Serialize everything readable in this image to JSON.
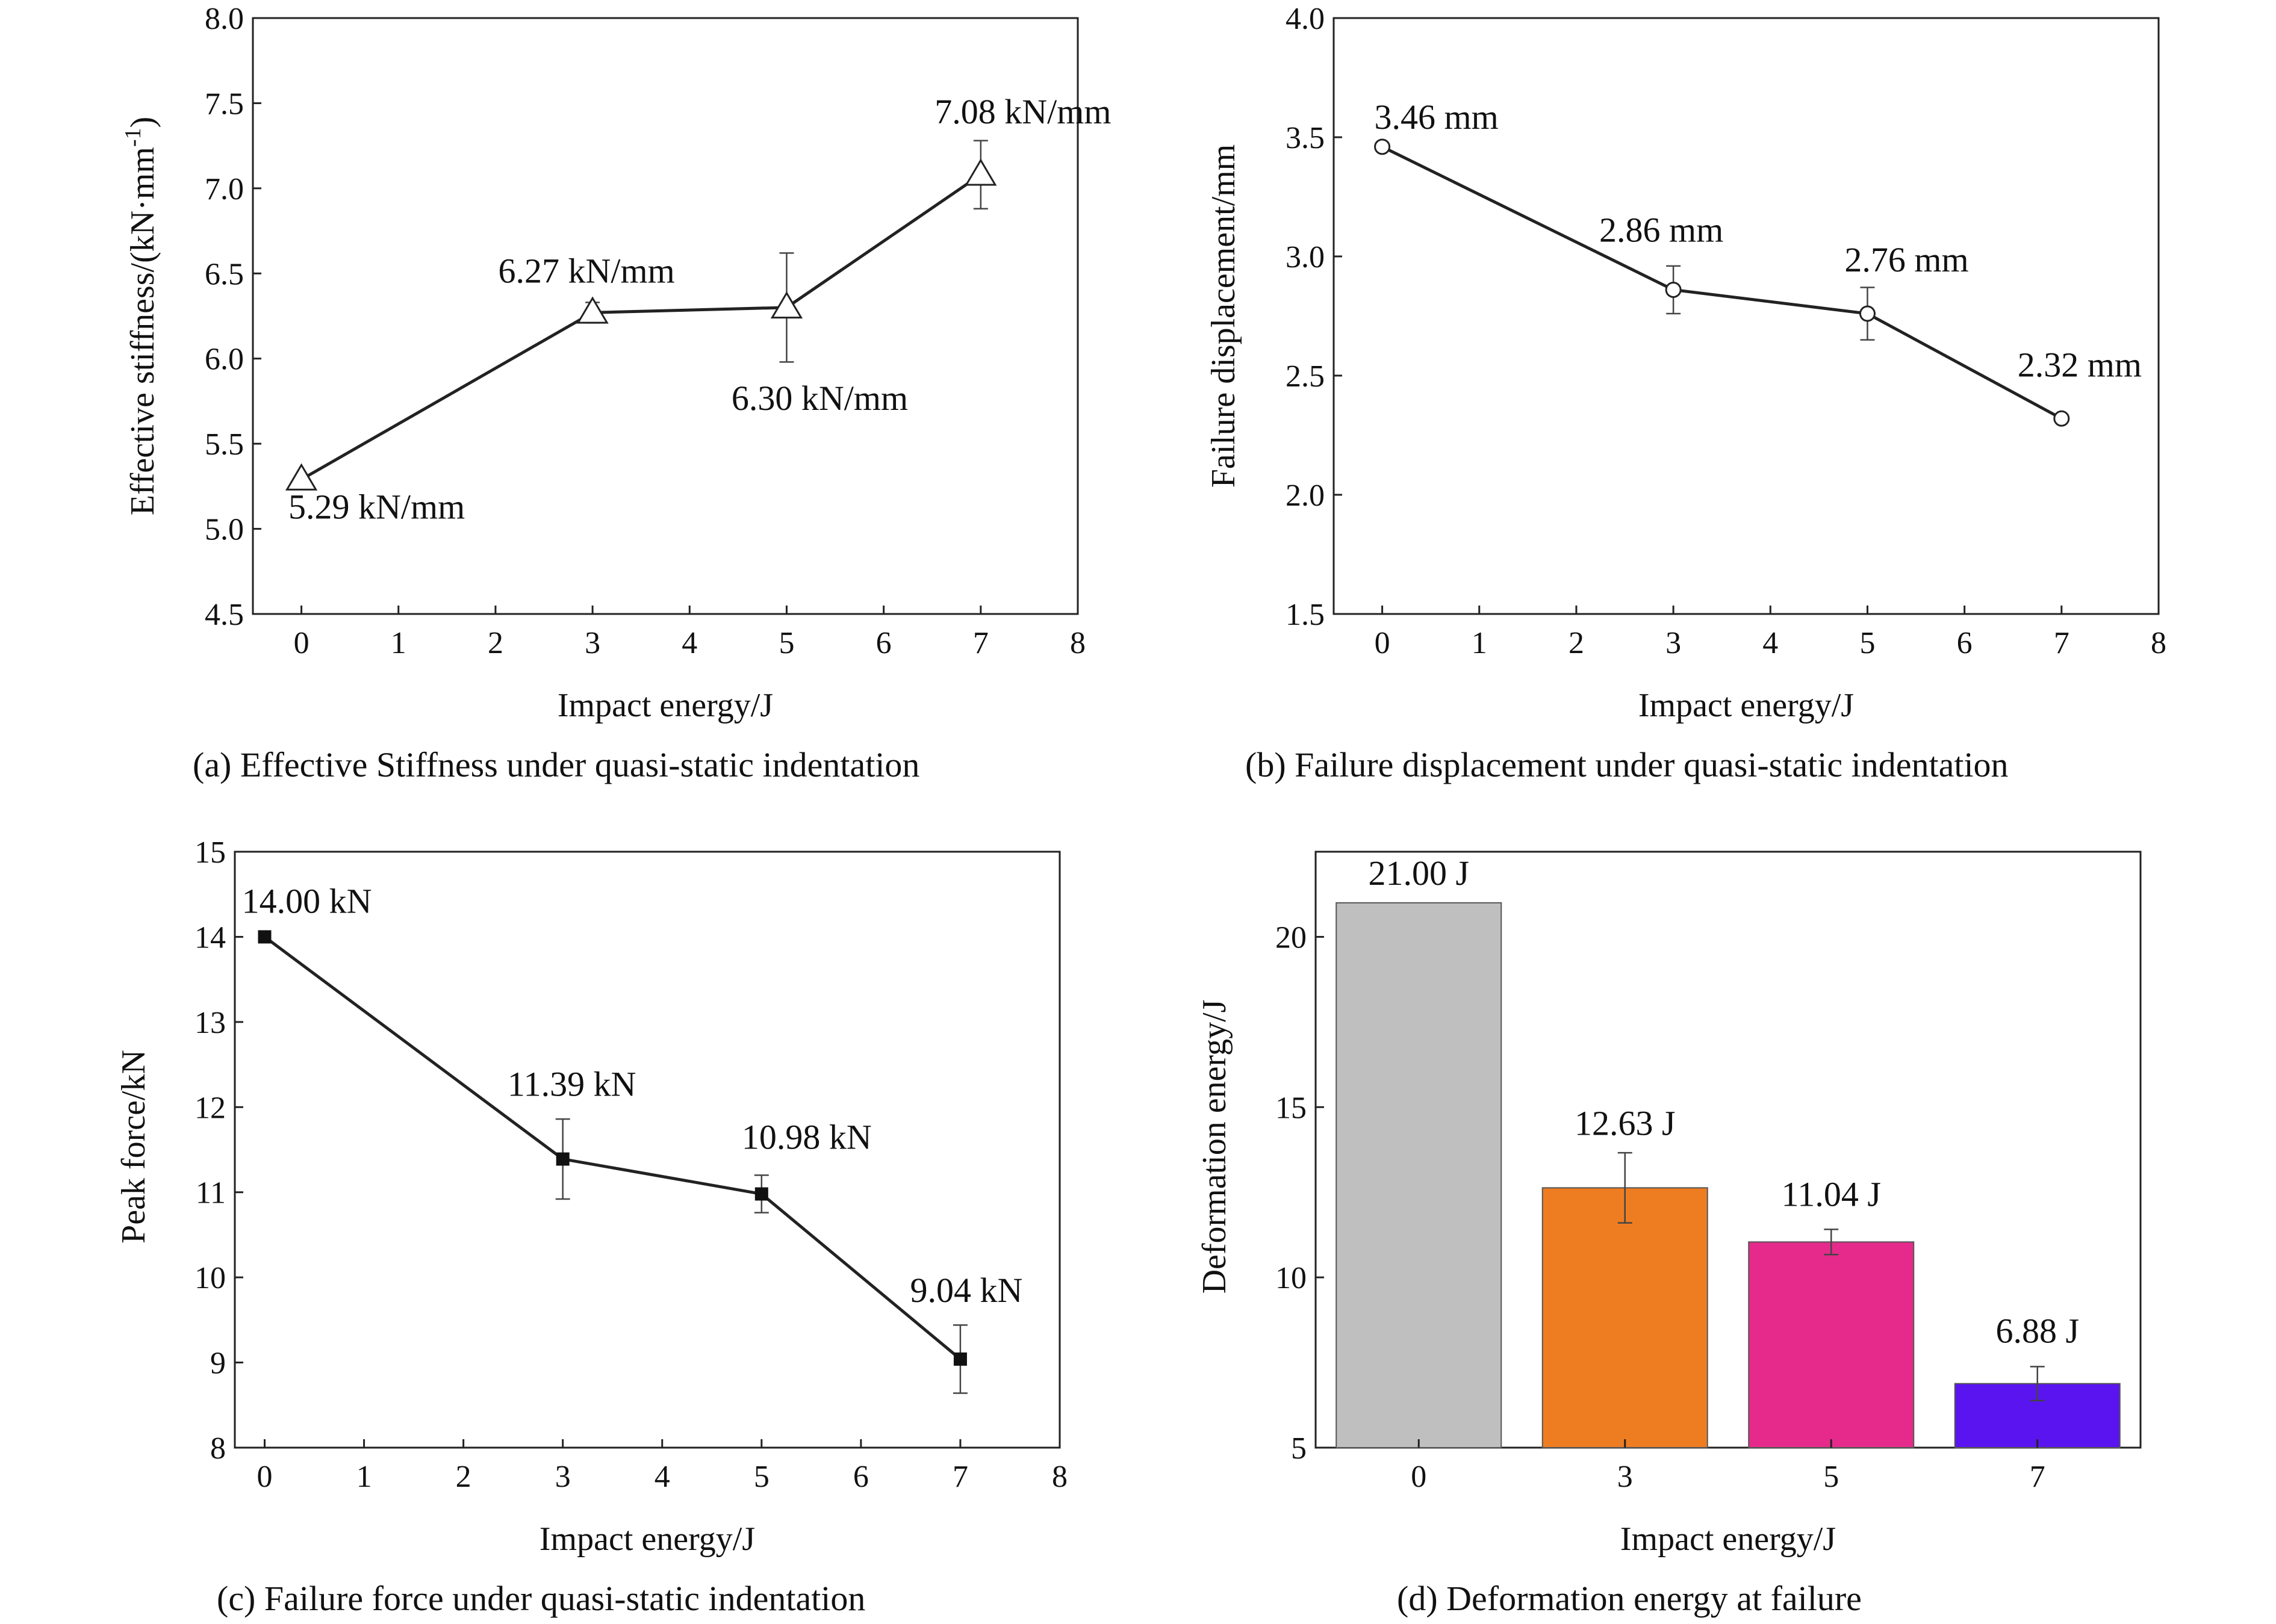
{
  "chart_data": [
    {
      "id": "a",
      "type": "line",
      "caption": "(a) Effective Stiffness under quasi-static indentation",
      "xlabel": "Impact energy/J",
      "ylabel": "Effective stiffness/(kN·mm",
      "ylabel_sup": "-1",
      "ylabel_tail": ")",
      "xlim": [
        -0.5,
        8
      ],
      "ylim": [
        4.5,
        8.0
      ],
      "xticks": [
        0,
        1,
        2,
        3,
        4,
        5,
        6,
        7,
        8
      ],
      "yticks": [
        "4.5",
        "5.0",
        "5.5",
        "6.0",
        "6.5",
        "7.0",
        "7.5",
        "8.0"
      ],
      "marker": "triangle",
      "series": [
        {
          "x": [
            0,
            3,
            5,
            7
          ],
          "y": [
            5.29,
            6.27,
            6.3,
            7.08
          ],
          "err": [
            0.0,
            0.06,
            0.32,
            0.2
          ],
          "labels": [
            "5.29 kN/mm",
            "6.27 kN/mm",
            "6.30 kN/mm",
            "7.08 kN/mm"
          ]
        }
      ]
    },
    {
      "id": "b",
      "type": "line",
      "caption": "(b) Failure displacement under quasi-static indentation",
      "xlabel": "Impact energy/J",
      "ylabel": "Failure displacement/mm",
      "xlim": [
        -0.5,
        8
      ],
      "ylim": [
        1.5,
        4.0
      ],
      "xticks": [
        0,
        1,
        2,
        3,
        4,
        5,
        6,
        7,
        8
      ],
      "yticks": [
        "1.5",
        "2.0",
        "2.5",
        "3.0",
        "3.5",
        "4.0"
      ],
      "marker": "circle",
      "series": [
        {
          "x": [
            0,
            3,
            5,
            7
          ],
          "y": [
            3.46,
            2.86,
            2.76,
            2.32
          ],
          "err": [
            0.0,
            0.1,
            0.11,
            0.0
          ],
          "labels": [
            "3.46 mm",
            "2.86 mm",
            "2.76 mm",
            "2.32 mm"
          ]
        }
      ]
    },
    {
      "id": "c",
      "type": "line",
      "caption": "(c) Failure force under quasi-static indentation",
      "xlabel": "Impact energy/J",
      "ylabel": "Peak force/kN",
      "xlim": [
        -0.3,
        8
      ],
      "ylim": [
        8,
        15
      ],
      "xticks": [
        0,
        1,
        2,
        3,
        4,
        5,
        6,
        7,
        8
      ],
      "yticks": [
        "8",
        "9",
        "10",
        "11",
        "12",
        "13",
        "14",
        "15"
      ],
      "marker": "square",
      "series": [
        {
          "x": [
            0,
            3,
            5,
            7
          ],
          "y": [
            14.0,
            11.39,
            10.98,
            9.04
          ],
          "err": [
            0.0,
            0.47,
            0.22,
            0.4
          ],
          "labels": [
            "14.00 kN",
            "11.39 kN",
            "10.98 kN",
            "9.04 kN"
          ]
        }
      ]
    },
    {
      "id": "d",
      "type": "bar",
      "caption": "(d) Deformation energy at failure",
      "xlabel": "Impact energy/J",
      "ylabel": "Deformation energy/J",
      "categories": [
        "0",
        "3",
        "5",
        "7"
      ],
      "ylim": [
        5,
        22.5
      ],
      "yticks": [
        "5",
        "10",
        "15",
        "20"
      ],
      "series": [
        {
          "values": [
            21.0,
            12.63,
            11.04,
            6.88
          ],
          "err": [
            0.0,
            1.03,
            0.37,
            0.5
          ],
          "labels": [
            "21.00 J",
            "12.63 J",
            "11.04 J",
            "6.88 J"
          ]
        }
      ],
      "colors": [
        "#bfbfbf",
        "#ee7d22",
        "#e62a8b",
        "#5a14f0"
      ]
    }
  ]
}
